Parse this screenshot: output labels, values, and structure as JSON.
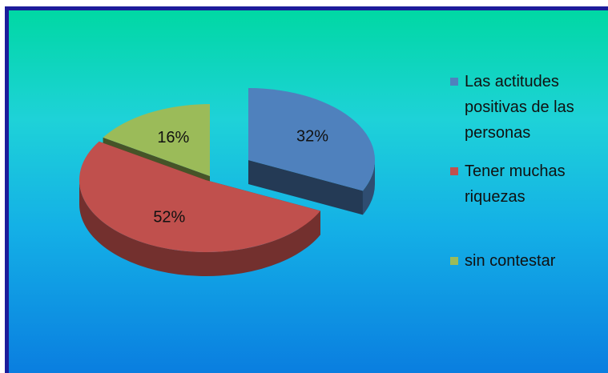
{
  "chart_data": {
    "type": "pie3d",
    "categories": [
      "Las actitudes positivas de las personas",
      "Tener muchas riquezas",
      "sin contestar"
    ],
    "values": [
      32,
      52,
      16
    ],
    "value_labels": [
      "32%",
      "52%",
      "16%"
    ],
    "colors": [
      "#4f81bd",
      "#c0504d",
      "#9bbb59"
    ],
    "legend": "right"
  }
}
